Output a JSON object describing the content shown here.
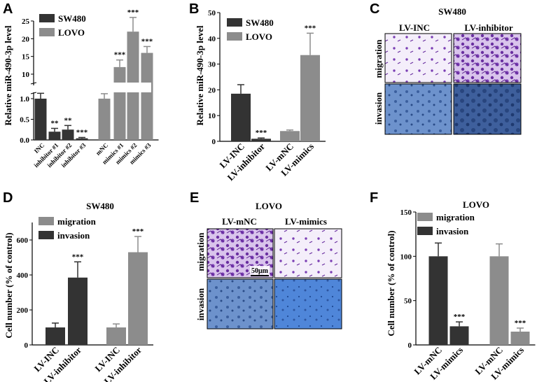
{
  "colors": {
    "dark": "#333333",
    "gray": "#8c8c8c",
    "axis": "#000000"
  },
  "panels": {
    "A": {
      "label": "A"
    },
    "B": {
      "label": "B"
    },
    "C": {
      "label": "C",
      "title": "SW480"
    },
    "D": {
      "label": "D",
      "title": "SW480"
    },
    "E": {
      "label": "E",
      "title": "LOVO"
    },
    "F": {
      "label": "F",
      "title": "LOVO"
    }
  },
  "micrographs": {
    "C": {
      "col_headers": [
        "LV-INC",
        "LV-inhibitor"
      ],
      "row_labels": [
        "migration",
        "invasion"
      ]
    },
    "E": {
      "col_headers": [
        "LV-mNC",
        "LV-mimics"
      ],
      "row_labels": [
        "migration",
        "invasion"
      ],
      "scale_bar": "50μm"
    }
  },
  "chart_data": [
    {
      "id": "A",
      "type": "bar",
      "ylabel": "Relative miR-490-3p level",
      "legend": [
        "SW480",
        "LOVO"
      ],
      "broken_axis": true,
      "y_ticks_lower": [
        "0.0",
        "0.5",
        "1.0"
      ],
      "y_ticks_upper": [
        "10",
        "15",
        "20",
        "25"
      ],
      "categories": [
        "INC",
        "inhibitor #1",
        "inhibitor #2",
        "inhibitor #3",
        "mNC",
        "mimics #1",
        "mimics #2",
        "mimics #3"
      ],
      "series": [
        {
          "name": "SW480",
          "values": [
            1.0,
            0.2,
            0.25,
            0.04,
            null,
            null,
            null,
            null
          ],
          "errors": [
            0.13,
            0.08,
            0.1,
            0.02,
            null,
            null,
            null,
            null
          ]
        },
        {
          "name": "LOVO",
          "values": [
            null,
            null,
            null,
            null,
            1.0,
            12,
            22,
            16
          ],
          "errors": [
            null,
            null,
            null,
            null,
            0.12,
            2,
            4,
            1.8
          ]
        }
      ],
      "annotations": [
        "",
        "**",
        "**",
        "***",
        "",
        "***",
        "***",
        "***"
      ]
    },
    {
      "id": "B",
      "type": "bar",
      "ylabel": "Relative miR-490-3p level",
      "legend": [
        "SW480",
        "LOVO"
      ],
      "ylim": [
        0,
        50
      ],
      "y_ticks": [
        "0",
        "10",
        "20",
        "30",
        "40",
        "50"
      ],
      "categories": [
        "LV-INC",
        "LV-inhibitor",
        "LV-mNC",
        "LV-mimics"
      ],
      "series": [
        {
          "name": "SW480",
          "values": [
            18.5,
            1,
            null,
            null
          ],
          "errors": [
            3.5,
            0.3,
            null,
            null
          ]
        },
        {
          "name": "LOVO",
          "values": [
            null,
            null,
            4,
            33.5
          ],
          "errors": [
            null,
            null,
            0.4,
            8.5
          ]
        }
      ],
      "annotations": [
        "",
        "***",
        "",
        "***"
      ]
    },
    {
      "id": "D",
      "type": "bar",
      "title": "SW480",
      "ylabel": "Cell number (% of control)",
      "legend": [
        "migration",
        "invasion"
      ],
      "ylim": [
        0,
        700
      ],
      "y_ticks": [
        "0",
        "200",
        "400",
        "600"
      ],
      "categories": [
        "LV-INC",
        "LV-inhibitor",
        "LV-INC",
        "LV-inhibitor"
      ],
      "series": [
        {
          "name": "invasion",
          "values": [
            100,
            385,
            null,
            null
          ],
          "errors": [
            25,
            90,
            null,
            null
          ]
        },
        {
          "name": "migration",
          "values": [
            null,
            null,
            100,
            530
          ],
          "errors": [
            null,
            null,
            20,
            90
          ]
        }
      ],
      "annotations": [
        "",
        "***",
        "",
        "***"
      ]
    },
    {
      "id": "F",
      "type": "bar",
      "title": "LOVO",
      "ylabel": "Cell number (% of control)",
      "legend": [
        "migration",
        "invasion"
      ],
      "ylim": [
        0,
        150
      ],
      "y_ticks": [
        "0",
        "50",
        "100",
        "150"
      ],
      "categories": [
        "LV-mNC",
        "LV-mimics",
        "LV-mNC",
        "LV-mimics"
      ],
      "series": [
        {
          "name": "invasion",
          "values": [
            100,
            21,
            null,
            null
          ],
          "errors": [
            15,
            5,
            null,
            null
          ]
        },
        {
          "name": "migration",
          "values": [
            null,
            null,
            100,
            15
          ],
          "errors": [
            null,
            null,
            14,
            4
          ]
        }
      ],
      "annotations": [
        "",
        "***",
        "",
        "***"
      ]
    }
  ]
}
